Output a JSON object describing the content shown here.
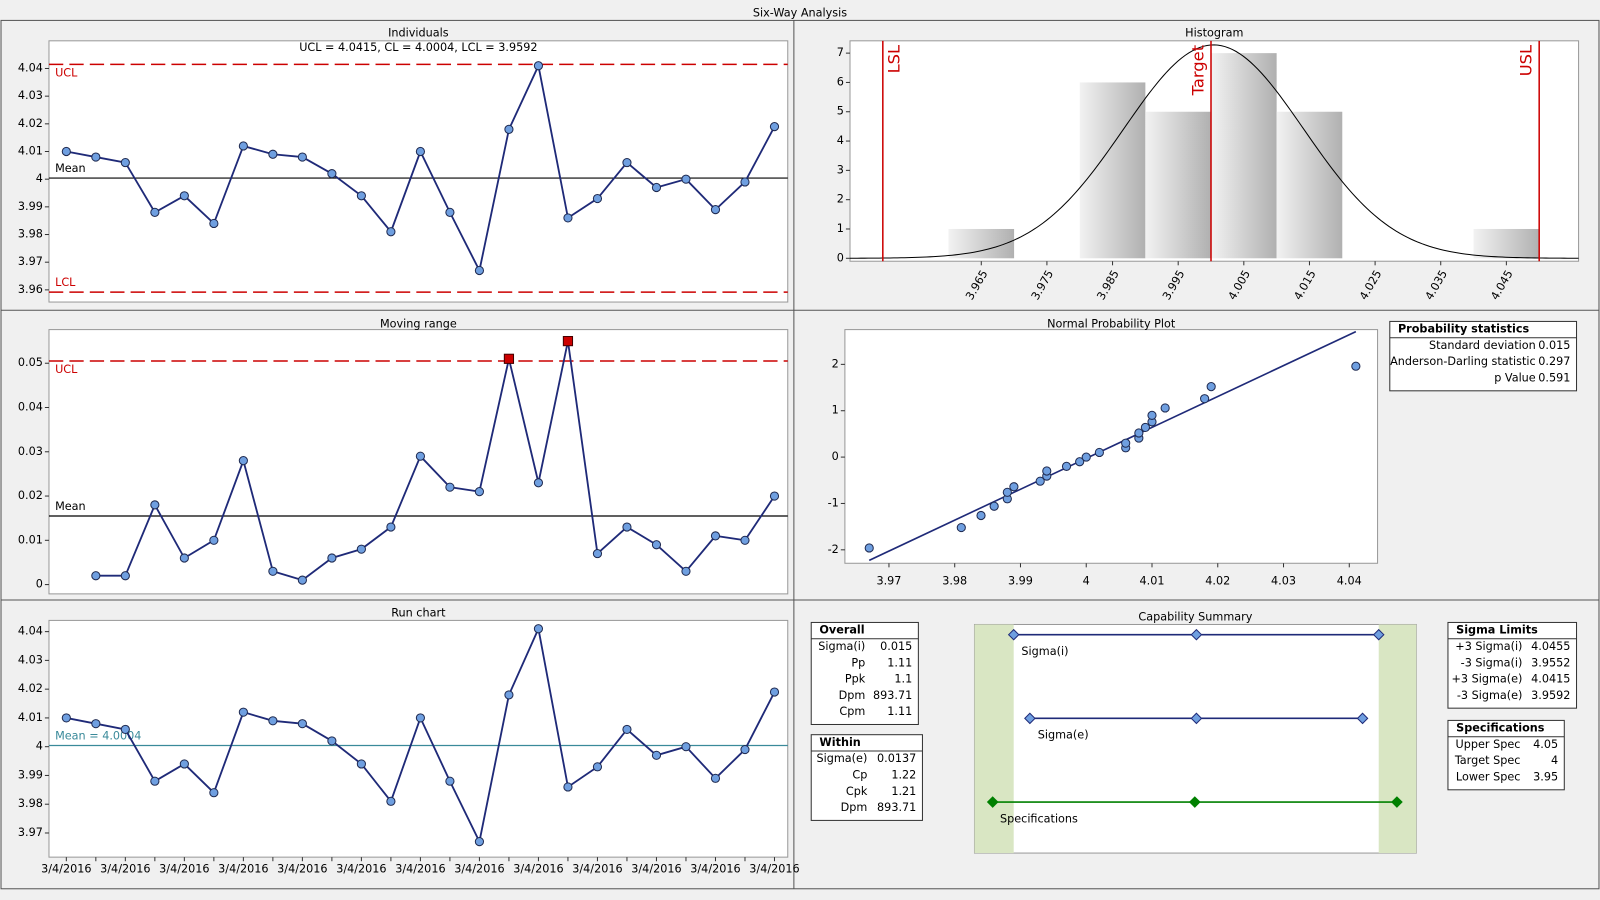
{
  "title": "Six-Way Analysis",
  "chart_data": [
    {
      "type": "line",
      "title": "Individuals",
      "subtitle": "UCL = 4.0415, CL = 4.0004, LCL = 3.9592",
      "values": [
        4.01,
        4.008,
        4.006,
        3.988,
        3.994,
        3.984,
        4.012,
        4.009,
        4.008,
        4.002,
        3.994,
        3.981,
        4.01,
        3.988,
        3.967,
        4.018,
        4.041,
        3.986,
        3.993,
        4.006,
        3.997,
        4.0,
        3.989,
        3.999,
        4.019
      ],
      "color": "#1f2a78",
      "marker_color": "#6f9fe0",
      "ylim": [
        3.9556,
        4.05
      ],
      "yticks": [
        3.96,
        3.97,
        3.98,
        3.99,
        4,
        4.01,
        4.02,
        4.03,
        4.04
      ],
      "limit_lines": [
        {
          "label": "UCL",
          "value": 4.0415,
          "color": "#cc0000",
          "style": "dashed"
        },
        {
          "label": "Mean",
          "value": 4.0004,
          "color": "#000000",
          "style": "solid"
        },
        {
          "label": "LCL",
          "value": 3.9592,
          "color": "#cc0000",
          "style": "dashed"
        }
      ]
    },
    {
      "type": "line",
      "title": "Moving range",
      "values": [
        null,
        0.002,
        0.002,
        0.018,
        0.006,
        0.01,
        0.028,
        0.003,
        0.001,
        0.006,
        0.008,
        0.013,
        0.029,
        0.022,
        0.021,
        0.051,
        0.023,
        0.055,
        0.007,
        0.013,
        0.009,
        0.003,
        0.011,
        0.01,
        0.02
      ],
      "color": "#1f2a78",
      "marker_color": "#6f9fe0",
      "out_of_control_color": "#cc0000",
      "ylim": [
        -0.0021,
        0.0576
      ],
      "yticks": [
        0,
        0.01,
        0.02,
        0.03,
        0.04,
        0.05
      ],
      "limit_lines": [
        {
          "label": "UCL",
          "value": 0.0505,
          "color": "#cc0000",
          "style": "dashed"
        },
        {
          "label": "Mean",
          "value": 0.0155,
          "color": "#000000",
          "style": "solid"
        }
      ]
    },
    {
      "type": "line",
      "title": "Run chart",
      "categories": [
        "3/4/2016",
        null,
        "3/4/2016",
        null,
        "3/4/2016",
        null,
        "3/4/2016",
        null,
        "3/4/2016",
        null,
        "3/4/2016",
        null,
        "3/4/2016",
        null,
        "3/4/2016",
        null,
        "3/4/2016",
        null,
        "3/4/2016",
        null,
        "3/4/2016",
        null,
        "3/4/2016",
        null,
        "3/4/2016"
      ],
      "values": [
        4.01,
        4.008,
        4.006,
        3.988,
        3.994,
        3.984,
        4.012,
        4.009,
        4.008,
        4.002,
        3.994,
        3.981,
        4.01,
        3.988,
        3.967,
        4.018,
        4.041,
        3.986,
        3.993,
        4.006,
        3.997,
        4.0,
        3.989,
        3.999,
        4.019
      ],
      "color": "#1f2a78",
      "marker_color": "#6f9fe0",
      "ylim": [
        3.9616,
        4.0439
      ],
      "yticks": [
        3.97,
        3.98,
        3.99,
        4,
        4.01,
        4.02,
        4.03,
        4.04
      ],
      "limit_lines": [
        {
          "label": "Mean = 4.0004",
          "value": 4.0004,
          "color": "#3a8a9a",
          "style": "solid"
        }
      ]
    },
    {
      "type": "histogram",
      "title": "Histogram",
      "bins": [
        3.96,
        3.97,
        3.98,
        3.99,
        4.0,
        4.01,
        4.02,
        4.03,
        4.04,
        4.05
      ],
      "values": [
        1,
        0,
        6,
        5,
        7,
        5,
        0,
        0,
        1
      ],
      "xlim": [
        3.945,
        4.056
      ],
      "xticks": [
        3.965,
        3.975,
        3.985,
        3.995,
        4.005,
        4.015,
        4.025,
        4.035,
        4.045
      ],
      "ylim": [
        -0.1,
        7.42
      ],
      "yticks": [
        0,
        1,
        2,
        3,
        4,
        5,
        6,
        7
      ],
      "curve_color": "#000000",
      "reference_lines": [
        {
          "label": "LSL",
          "value": 3.95,
          "color": "#cc0000"
        },
        {
          "label": "Target",
          "value": 4.0,
          "color": "#cc0000"
        },
        {
          "label": "USL",
          "value": 4.05,
          "color": "#cc0000"
        }
      ]
    },
    {
      "type": "scatter",
      "title": "Normal Probability Plot",
      "x": [
        3.967,
        3.981,
        3.984,
        3.986,
        3.988,
        3.988,
        3.989,
        3.993,
        3.994,
        3.994,
        3.997,
        3.999,
        4.0,
        4.002,
        4.006,
        4.006,
        4.008,
        4.008,
        4.009,
        4.01,
        4.01,
        4.012,
        4.018,
        4.019,
        4.041
      ],
      "values": [
        -1.96,
        -1.52,
        -1.26,
        -1.06,
        -0.9,
        -0.76,
        -0.64,
        -0.52,
        -0.41,
        -0.3,
        -0.2,
        -0.1,
        0,
        0.1,
        0.2,
        0.3,
        0.41,
        0.52,
        0.64,
        0.76,
        0.9,
        1.06,
        1.26,
        1.52,
        1.96
      ],
      "color": "#6f9fe0",
      "line_color": "#1f2a78",
      "xlim": [
        3.9633,
        4.0443
      ],
      "xticks": [
        3.97,
        3.98,
        3.99,
        4,
        4.01,
        4.02,
        4.03,
        4.04
      ],
      "ylim": [
        -2.29,
        2.75
      ],
      "yticks": [
        -2,
        -1,
        0,
        1,
        2
      ]
    },
    {
      "type": "capability",
      "title": "Capability Summary",
      "xlim": [
        3.9455,
        4.0548
      ],
      "band_color": "#d9e6c3",
      "series": [
        {
          "name": "Sigma(i)",
          "color": "#1f2a78",
          "marker_color": "#6f9fe0",
          "values": [
            3.9552,
            4.0004,
            4.0455
          ]
        },
        {
          "name": "Sigma(e)",
          "color": "#1f2a78",
          "marker_color": "#6f9fe0",
          "values": [
            3.9592,
            4.0004,
            4.0415
          ]
        },
        {
          "name": "Specifications",
          "color": "#008000",
          "marker_color": "#008000",
          "values": [
            3.95,
            4.0,
            4.05
          ]
        }
      ]
    }
  ],
  "tables": [
    {
      "title": "Overall",
      "rows": [
        [
          "Sigma(i)",
          0.015
        ],
        [
          "Pp",
          1.11
        ],
        [
          "Ppk",
          1.1
        ],
        [
          "Dpm",
          893.71
        ],
        [
          "Cpm",
          1.11
        ]
      ]
    },
    {
      "title": "Within",
      "rows": [
        [
          "Sigma(e)",
          0.0137
        ],
        [
          "Cp",
          1.22
        ],
        [
          "Cpk",
          1.21
        ],
        [
          "Dpm",
          893.71
        ]
      ]
    },
    {
      "title": "Sigma Limits",
      "rows": [
        [
          "+3 Sigma(i)",
          4.0455
        ],
        [
          "-3 Sigma(i)",
          3.9552
        ],
        [
          "+3 Sigma(e)",
          4.0415
        ],
        [
          "-3 Sigma(e)",
          3.9592
        ]
      ]
    },
    {
      "title": "Specifications",
      "rows": [
        [
          "Upper Spec",
          4.05
        ],
        [
          "Target Spec",
          4
        ],
        [
          "Lower Spec",
          3.95
        ]
      ]
    },
    {
      "title": "Probability statistics",
      "rows": [
        [
          "Standard deviation",
          0.015
        ],
        [
          "Anderson-Darling statistic",
          0.297
        ],
        [
          "p Value",
          0.591
        ]
      ]
    }
  ]
}
